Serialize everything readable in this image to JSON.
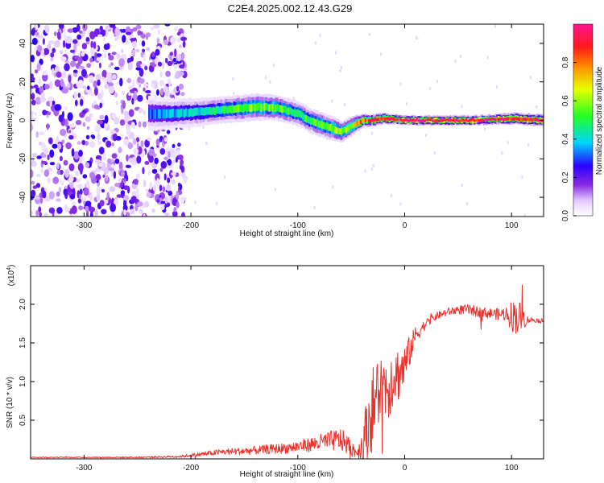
{
  "title": "C2E4.2025.002.12.43.G29",
  "colors": {
    "snr_line": "#e8322c",
    "frame": "#000000"
  },
  "chart_data": [
    {
      "type": "heatmap",
      "xlabel": "Height of straight line (km)",
      "ylabel": "Frequency (Hz)",
      "xlim": [
        -350,
        130
      ],
      "ylim": [
        -50,
        50
      ],
      "x_ticks": [
        -300,
        -200,
        -100,
        0,
        100
      ],
      "y_ticks": [
        -40,
        -20,
        0,
        20,
        40
      ],
      "colorbar": {
        "label": "Normalized spectral amplitude",
        "range": [
          0,
          1
        ],
        "ticks": [
          "0.0",
          "0.2",
          "0.4",
          "0.6",
          "0.8"
        ],
        "tick_values": [
          0,
          0.2,
          0.4,
          0.6,
          0.8
        ],
        "colormap": "rainbow (white-violet-blue-cyan-green-yellow-red-magenta)"
      },
      "noise_region_x": [
        -350,
        -205
      ],
      "ridge": {
        "x": [
          -240,
          -220,
          -200,
          -180,
          -160,
          -140,
          -120,
          -100,
          -90,
          -80,
          -70,
          -60,
          -50,
          -40,
          -30,
          -20,
          -10,
          0,
          20,
          40,
          60,
          80,
          100,
          130
        ],
        "freq": [
          3.5,
          3.5,
          4,
          5,
          6,
          7,
          6.5,
          3.5,
          0,
          -2,
          -4,
          -6,
          -3,
          0,
          0,
          1,
          0.5,
          0,
          0,
          0,
          0,
          0.5,
          1,
          0
        ],
        "width": [
          9,
          8,
          7.5,
          7,
          7,
          7,
          6.5,
          6.5,
          6.5,
          6.5,
          6.5,
          5.5,
          5,
          3.5,
          3,
          3,
          2.5,
          2.5,
          2.5,
          2.5,
          2.5,
          2.5,
          3,
          3
        ],
        "amp": [
          0.3,
          0.35,
          0.4,
          0.45,
          0.5,
          0.55,
          0.55,
          0.5,
          0.5,
          0.55,
          0.55,
          0.6,
          0.65,
          0.8,
          0.85,
          0.85,
          0.9,
          0.95,
          0.95,
          0.95,
          0.95,
          0.95,
          0.95,
          0.95
        ]
      }
    },
    {
      "type": "line",
      "xlabel": "Height of straight line (km)",
      "ylabel": "SNR (10 * v/v)",
      "y_multiplier": "(x10",
      "y_multiplier_exp": "4",
      "y_multiplier_close": ")",
      "xlim": [
        -350,
        130
      ],
      "ylim": [
        0,
        2.5
      ],
      "x_ticks": [
        -300,
        -200,
        -100,
        0,
        100
      ],
      "y_ticks": [
        0.5,
        1.0,
        1.5,
        2.0
      ],
      "series": [
        {
          "x": [
            -350,
            -300,
            -250,
            -210,
            -190,
            -170,
            -150,
            -130,
            -110,
            -90,
            -75,
            -60,
            -50,
            -45,
            -40,
            -35,
            -30,
            -25,
            -20,
            -15,
            -10,
            -5,
            0,
            5,
            10,
            20,
            30,
            40,
            50,
            60,
            70,
            80,
            90,
            95,
            100,
            105,
            110,
            115,
            120,
            130
          ],
          "y": [
            0.02,
            0.02,
            0.02,
            0.03,
            0.06,
            0.09,
            0.1,
            0.12,
            0.14,
            0.18,
            0.22,
            0.25,
            0.15,
            0.08,
            0.15,
            0.4,
            0.65,
            0.85,
            0.95,
            0.95,
            1.1,
            1.1,
            1.2,
            1.4,
            1.6,
            1.75,
            1.85,
            1.9,
            1.93,
            1.93,
            1.9,
            1.88,
            1.87,
            1.88,
            1.85,
            1.85,
            1.82,
            1.8,
            1.8,
            1.78
          ],
          "noise": [
            0.005,
            0.005,
            0.008,
            0.015,
            0.03,
            0.04,
            0.05,
            0.06,
            0.07,
            0.09,
            0.12,
            0.15,
            0.12,
            0.08,
            0.25,
            0.45,
            0.55,
            0.5,
            0.45,
            0.45,
            0.4,
            0.35,
            0.3,
            0.2,
            0.12,
            0.06,
            0.05,
            0.05,
            0.06,
            0.07,
            0.07,
            0.07,
            0.08,
            0.1,
            0.2,
            0.25,
            0.18,
            0.05,
            0.03,
            0.03
          ]
        }
      ]
    }
  ]
}
